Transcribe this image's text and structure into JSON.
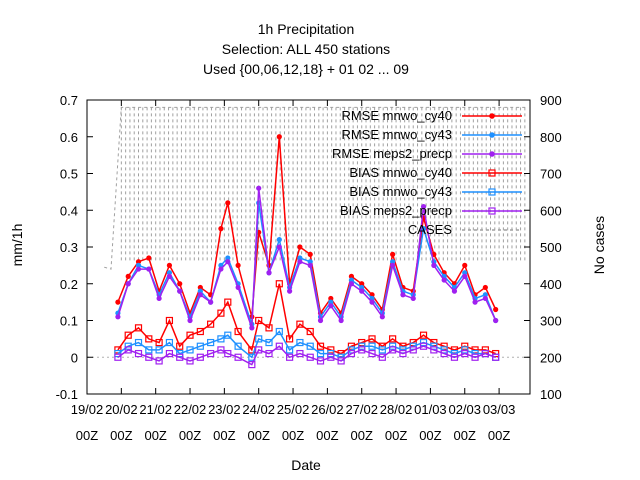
{
  "chart_data": {
    "type": "line",
    "title_lines": [
      "1h Precipitation",
      "Selection: ALL    450 stations",
      "Used {00,06,12,18} + 01 02 ... 09"
    ],
    "xlabel": "Date",
    "ylabel": "mm/1h",
    "y2label": "No cases",
    "ylim": [
      -0.1,
      0.7
    ],
    "y2lim": [
      100,
      900
    ],
    "yticks": [
      "-0.1",
      "0",
      "0.1",
      "0.2",
      "0.3",
      "0.4",
      "0.5",
      "0.6",
      "0.7"
    ],
    "y2ticks": [
      "100",
      "200",
      "300",
      "400",
      "500",
      "600",
      "700",
      "800",
      "900"
    ],
    "xticks": [
      {
        "date": "19/02",
        "hour": "00Z"
      },
      {
        "date": "20/02",
        "hour": "00Z"
      },
      {
        "date": "21/02",
        "hour": "00Z"
      },
      {
        "date": "22/02",
        "hour": "00Z"
      },
      {
        "date": "23/02",
        "hour": "00Z"
      },
      {
        "date": "24/02",
        "hour": "00Z"
      },
      {
        "date": "25/02",
        "hour": "00Z"
      },
      {
        "date": "26/02",
        "hour": "00Z"
      },
      {
        "date": "27/02",
        "hour": "00Z"
      },
      {
        "date": "28/02",
        "hour": "00Z"
      },
      {
        "date": "01/03",
        "hour": "00Z"
      },
      {
        "date": "02/03",
        "hour": "00Z"
      },
      {
        "date": "03/03",
        "hour": "00Z"
      }
    ],
    "x_range_days": [
      0.0,
      12.9
    ],
    "legend_position": "top-right",
    "series": [
      {
        "name": "RMSE mnwo_cy40",
        "color": "#ff0000",
        "marker": "filled-circle",
        "axis": "y1",
        "points": [
          [
            0.9,
            0.15
          ],
          [
            1.2,
            0.22
          ],
          [
            1.5,
            0.26
          ],
          [
            1.8,
            0.27
          ],
          [
            2.1,
            0.18
          ],
          [
            2.4,
            0.25
          ],
          [
            2.7,
            0.2
          ],
          [
            3.0,
            0.12
          ],
          [
            3.3,
            0.19
          ],
          [
            3.6,
            0.17
          ],
          [
            3.9,
            0.35
          ],
          [
            4.1,
            0.42
          ],
          [
            4.4,
            0.25
          ],
          [
            4.8,
            0.11
          ],
          [
            5.0,
            0.34
          ],
          [
            5.3,
            0.25
          ],
          [
            5.6,
            0.6
          ],
          [
            5.9,
            0.2
          ],
          [
            6.2,
            0.3
          ],
          [
            6.5,
            0.28
          ],
          [
            6.8,
            0.12
          ],
          [
            7.1,
            0.16
          ],
          [
            7.4,
            0.12
          ],
          [
            7.7,
            0.22
          ],
          [
            8.0,
            0.2
          ],
          [
            8.3,
            0.17
          ],
          [
            8.6,
            0.13
          ],
          [
            8.9,
            0.28
          ],
          [
            9.2,
            0.19
          ],
          [
            9.5,
            0.18
          ],
          [
            9.8,
            0.38
          ],
          [
            10.1,
            0.28
          ],
          [
            10.4,
            0.23
          ],
          [
            10.7,
            0.2
          ],
          [
            11.0,
            0.25
          ],
          [
            11.3,
            0.17
          ],
          [
            11.6,
            0.19
          ],
          [
            11.9,
            0.13
          ]
        ]
      },
      {
        "name": "RMSE mnwo_cy43",
        "color": "#1e90ff",
        "marker": "filled-star",
        "axis": "y1",
        "points": [
          [
            0.9,
            0.12
          ],
          [
            1.2,
            0.2
          ],
          [
            1.5,
            0.25
          ],
          [
            1.8,
            0.24
          ],
          [
            2.1,
            0.17
          ],
          [
            2.4,
            0.23
          ],
          [
            2.7,
            0.18
          ],
          [
            3.0,
            0.11
          ],
          [
            3.3,
            0.18
          ],
          [
            3.6,
            0.15
          ],
          [
            3.9,
            0.25
          ],
          [
            4.1,
            0.27
          ],
          [
            4.4,
            0.2
          ],
          [
            4.8,
            0.09
          ],
          [
            5.0,
            0.42
          ],
          [
            5.3,
            0.23
          ],
          [
            5.6,
            0.32
          ],
          [
            5.9,
            0.19
          ],
          [
            6.2,
            0.27
          ],
          [
            6.5,
            0.26
          ],
          [
            6.8,
            0.11
          ],
          [
            7.1,
            0.15
          ],
          [
            7.4,
            0.11
          ],
          [
            7.7,
            0.21
          ],
          [
            8.0,
            0.19
          ],
          [
            8.3,
            0.16
          ],
          [
            8.6,
            0.12
          ],
          [
            8.9,
            0.26
          ],
          [
            9.2,
            0.18
          ],
          [
            9.5,
            0.17
          ],
          [
            9.8,
            0.35
          ],
          [
            10.1,
            0.26
          ],
          [
            10.4,
            0.22
          ],
          [
            10.7,
            0.19
          ],
          [
            11.0,
            0.23
          ],
          [
            11.3,
            0.16
          ],
          [
            11.6,
            0.17
          ],
          [
            11.9,
            0.1
          ]
        ]
      },
      {
        "name": "RMSE meps2_precp",
        "color": "#a020f0",
        "marker": "filled-circle",
        "axis": "y1",
        "points": [
          [
            0.9,
            0.11
          ],
          [
            1.2,
            0.2
          ],
          [
            1.5,
            0.24
          ],
          [
            1.8,
            0.24
          ],
          [
            2.1,
            0.16
          ],
          [
            2.4,
            0.22
          ],
          [
            2.7,
            0.18
          ],
          [
            3.0,
            0.1
          ],
          [
            3.3,
            0.17
          ],
          [
            3.6,
            0.15
          ],
          [
            3.9,
            0.24
          ],
          [
            4.1,
            0.26
          ],
          [
            4.4,
            0.19
          ],
          [
            4.8,
            0.08
          ],
          [
            5.0,
            0.46
          ],
          [
            5.3,
            0.23
          ],
          [
            5.6,
            0.3
          ],
          [
            5.9,
            0.18
          ],
          [
            6.2,
            0.26
          ],
          [
            6.5,
            0.25
          ],
          [
            6.8,
            0.1
          ],
          [
            7.1,
            0.14
          ],
          [
            7.4,
            0.1
          ],
          [
            7.7,
            0.2
          ],
          [
            8.0,
            0.18
          ],
          [
            8.3,
            0.15
          ],
          [
            8.6,
            0.11
          ],
          [
            8.9,
            0.25
          ],
          [
            9.2,
            0.17
          ],
          [
            9.5,
            0.16
          ],
          [
            9.8,
            0.41
          ],
          [
            10.1,
            0.25
          ],
          [
            10.4,
            0.21
          ],
          [
            10.7,
            0.18
          ],
          [
            11.0,
            0.22
          ],
          [
            11.3,
            0.15
          ],
          [
            11.6,
            0.16
          ],
          [
            11.9,
            0.1
          ]
        ]
      },
      {
        "name": "BIAS mnwo_cy40",
        "color": "#ff0000",
        "marker": "open-square",
        "axis": "y1",
        "points": [
          [
            0.9,
            0.02
          ],
          [
            1.2,
            0.06
          ],
          [
            1.5,
            0.08
          ],
          [
            1.8,
            0.05
          ],
          [
            2.1,
            0.04
          ],
          [
            2.4,
            0.1
          ],
          [
            2.7,
            0.03
          ],
          [
            3.0,
            0.06
          ],
          [
            3.3,
            0.07
          ],
          [
            3.6,
            0.09
          ],
          [
            3.9,
            0.12
          ],
          [
            4.1,
            0.15
          ],
          [
            4.4,
            0.07
          ],
          [
            4.8,
            0.02
          ],
          [
            5.0,
            0.1
          ],
          [
            5.3,
            0.08
          ],
          [
            5.6,
            0.2
          ],
          [
            5.9,
            0.05
          ],
          [
            6.2,
            0.09
          ],
          [
            6.5,
            0.07
          ],
          [
            6.8,
            0.03
          ],
          [
            7.1,
            0.02
          ],
          [
            7.4,
            0.01
          ],
          [
            7.7,
            0.03
          ],
          [
            8.0,
            0.04
          ],
          [
            8.3,
            0.05
          ],
          [
            8.6,
            0.03
          ],
          [
            8.9,
            0.05
          ],
          [
            9.2,
            0.03
          ],
          [
            9.5,
            0.04
          ],
          [
            9.8,
            0.06
          ],
          [
            10.1,
            0.04
          ],
          [
            10.4,
            0.03
          ],
          [
            10.7,
            0.02
          ],
          [
            11.0,
            0.03
          ],
          [
            11.3,
            0.02
          ],
          [
            11.6,
            0.02
          ],
          [
            11.9,
            0.01
          ]
        ]
      },
      {
        "name": "BIAS mnwo_cy43",
        "color": "#1e90ff",
        "marker": "open-square",
        "axis": "y1",
        "points": [
          [
            0.9,
            0.01
          ],
          [
            1.2,
            0.03
          ],
          [
            1.5,
            0.04
          ],
          [
            1.8,
            0.02
          ],
          [
            2.1,
            0.02
          ],
          [
            2.4,
            0.04
          ],
          [
            2.7,
            0.01
          ],
          [
            3.0,
            0.02
          ],
          [
            3.3,
            0.03
          ],
          [
            3.6,
            0.04
          ],
          [
            3.9,
            0.05
          ],
          [
            4.1,
            0.06
          ],
          [
            4.4,
            0.03
          ],
          [
            4.8,
            0.0
          ],
          [
            5.0,
            0.05
          ],
          [
            5.3,
            0.04
          ],
          [
            5.6,
            0.07
          ],
          [
            5.9,
            0.02
          ],
          [
            6.2,
            0.04
          ],
          [
            6.5,
            0.03
          ],
          [
            6.8,
            0.01
          ],
          [
            7.1,
            0.01
          ],
          [
            7.4,
            0.0
          ],
          [
            7.7,
            0.02
          ],
          [
            8.0,
            0.03
          ],
          [
            8.3,
            0.03
          ],
          [
            8.6,
            0.02
          ],
          [
            8.9,
            0.03
          ],
          [
            9.2,
            0.02
          ],
          [
            9.5,
            0.03
          ],
          [
            9.8,
            0.04
          ],
          [
            10.1,
            0.03
          ],
          [
            10.4,
            0.02
          ],
          [
            10.7,
            0.01
          ],
          [
            11.0,
            0.02
          ],
          [
            11.3,
            0.01
          ],
          [
            11.6,
            0.01
          ],
          [
            11.9,
            0.0
          ]
        ]
      },
      {
        "name": "BIAS meps2_precp",
        "color": "#a020f0",
        "marker": "open-square",
        "axis": "y1",
        "points": [
          [
            0.9,
            0.0
          ],
          [
            1.2,
            0.02
          ],
          [
            1.5,
            0.01
          ],
          [
            1.8,
            0.0
          ],
          [
            2.1,
            -0.01
          ],
          [
            2.4,
            0.01
          ],
          [
            2.7,
            0.0
          ],
          [
            3.0,
            -0.01
          ],
          [
            3.3,
            0.0
          ],
          [
            3.6,
            0.01
          ],
          [
            3.9,
            0.02
          ],
          [
            4.1,
            0.01
          ],
          [
            4.4,
            0.0
          ],
          [
            4.8,
            -0.02
          ],
          [
            5.0,
            0.02
          ],
          [
            5.3,
            0.01
          ],
          [
            5.6,
            0.03
          ],
          [
            5.9,
            0.0
          ],
          [
            6.2,
            0.01
          ],
          [
            6.5,
            0.0
          ],
          [
            6.8,
            -0.01
          ],
          [
            7.1,
            0.0
          ],
          [
            7.4,
            -0.01
          ],
          [
            7.7,
            0.01
          ],
          [
            8.0,
            0.02
          ],
          [
            8.3,
            0.01
          ],
          [
            8.6,
            0.0
          ],
          [
            8.9,
            0.02
          ],
          [
            9.2,
            0.01
          ],
          [
            9.5,
            0.02
          ],
          [
            9.8,
            0.03
          ],
          [
            10.1,
            0.02
          ],
          [
            10.4,
            0.01
          ],
          [
            10.7,
            0.0
          ],
          [
            11.0,
            0.01
          ],
          [
            11.3,
            0.0
          ],
          [
            11.6,
            0.01
          ],
          [
            11.9,
            0.0
          ]
        ]
      },
      {
        "name": "CASES",
        "color": "#a0a0a0",
        "marker": "none",
        "dashed": true,
        "axis": "y2",
        "points": [
          [
            0.5,
            445
          ],
          [
            0.7,
            440
          ],
          [
            1.0,
            880
          ],
          [
            1.3,
            880
          ],
          [
            1.6,
            880
          ],
          [
            2.0,
            880
          ],
          [
            2.4,
            880
          ],
          [
            2.8,
            880
          ],
          [
            3.2,
            880
          ],
          [
            3.6,
            880
          ],
          [
            4.0,
            880
          ],
          [
            4.4,
            880
          ],
          [
            4.8,
            880
          ],
          [
            5.2,
            880
          ],
          [
            5.6,
            880
          ],
          [
            6.0,
            880
          ],
          [
            6.4,
            880
          ],
          [
            6.8,
            880
          ],
          [
            7.2,
            880
          ],
          [
            7.6,
            880
          ],
          [
            8.0,
            880
          ],
          [
            8.4,
            880
          ],
          [
            8.8,
            880
          ],
          [
            9.2,
            880
          ],
          [
            9.6,
            880
          ],
          [
            10.0,
            880
          ],
          [
            10.4,
            880
          ],
          [
            10.8,
            880
          ],
          [
            11.2,
            880
          ],
          [
            11.6,
            880
          ],
          [
            12.0,
            880
          ],
          [
            12.4,
            880
          ],
          [
            12.8,
            880
          ]
        ]
      }
    ]
  }
}
